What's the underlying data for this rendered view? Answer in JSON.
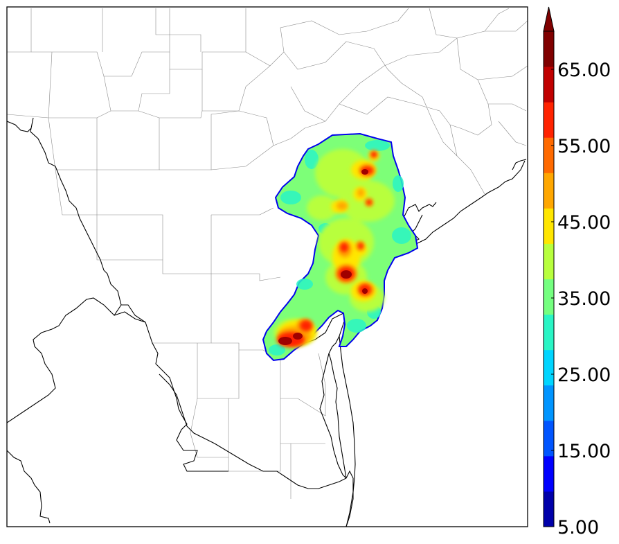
{
  "colorbar": {
    "tick_labels": [
      "5.00",
      "15.00",
      "25.00",
      "35.00",
      "45.00",
      "55.00",
      "65.00"
    ],
    "levels": [
      5,
      10,
      15,
      20,
      25,
      30,
      35,
      40,
      45,
      50,
      55,
      60,
      65,
      70
    ],
    "colors": [
      "#0000aa",
      "#0000ff",
      "#0055ff",
      "#0095ff",
      "#00d5ff",
      "#2af5c5",
      "#75ff80",
      "#b8ff3e",
      "#ffe600",
      "#ffa700",
      "#ff6a00",
      "#ff2300",
      "#c00000",
      "#800000"
    ],
    "extend": "max"
  },
  "map": {
    "fill_colors": {
      "outline": "#0000ee",
      "base": "#7dff78",
      "cyan": "#2af5c5",
      "lime": "#b8ff3e",
      "yellow": "#ffe600",
      "orange": "#ffa700",
      "red": "#ff2300",
      "darkred": "#a00000"
    }
  }
}
